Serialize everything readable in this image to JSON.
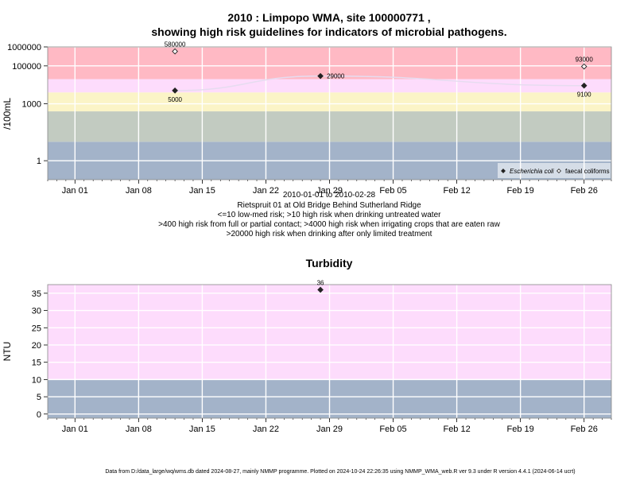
{
  "chart_data": [
    {
      "type": "scatter",
      "title_line1": "2010 : Limpopo WMA, site 100000771 ,",
      "title_line2": "showing high risk guidelines for indicators of microbial pathogens.",
      "ylabel": "/100mL",
      "yscale": "log",
      "ylim": [
        0.1,
        1000000
      ],
      "yticks": [
        "1000000",
        "100000",
        "1000",
        "1"
      ],
      "xlim": [
        "2009-12-29",
        "2010-03-01"
      ],
      "xticks": [
        "Jan 01",
        "Jan 08",
        "Jan 15",
        "Jan 22",
        "Jan 29",
        "Feb 05",
        "Feb 12",
        "Feb 19",
        "Feb 26"
      ],
      "bands": [
        {
          "from": 0.1,
          "to": 10,
          "color": "#a3b3c9"
        },
        {
          "from": 10,
          "to": 400,
          "color": "#c2cbc1"
        },
        {
          "from": 400,
          "to": 4000,
          "color": "#fbf4c7"
        },
        {
          "from": 4000,
          "to": 20000,
          "color": "#fddcfc"
        },
        {
          "from": 20000,
          "to": 1000000,
          "color": "#ffb9c4"
        }
      ],
      "series": [
        {
          "name": "Escherichia coli",
          "marker": "filled-diamond",
          "points": [
            {
              "x": "2010-01-12",
              "y": 5000,
              "label": "5000"
            },
            {
              "x": "2010-01-28",
              "y": 29000,
              "label": "29000"
            },
            {
              "x": "2010-02-26",
              "y": 9100,
              "label": "9100"
            }
          ]
        },
        {
          "name": "faecal coliforms",
          "marker": "open-diamond",
          "points": [
            {
              "x": "2010-01-12",
              "y": 580000,
              "label": "580000"
            },
            {
              "x": "2010-02-26",
              "y": 93000,
              "label": "93000"
            }
          ]
        }
      ],
      "legend": {
        "position": "bottom-right",
        "items": [
          "Escherichia coli",
          "faecal coliforms"
        ]
      },
      "subtitle_lines": [
        "2010-01-01 to 2010-02-28",
        "Rietspruit 01 at Old Bridge Behind Sutherland Ridge",
        "<=10 low-med risk; >10 high risk when drinking untreated water",
        ">400 high risk from full or partial contact; >4000 high risk when irrigating crops that are eaten raw",
        ">20000 high risk when drinking after only limited treatment"
      ]
    },
    {
      "type": "scatter",
      "title": "Turbidity",
      "ylabel": "NTU",
      "ylim": [
        -1.2,
        37.5
      ],
      "yticks": [
        "0",
        "5",
        "10",
        "15",
        "20",
        "25",
        "30",
        "35"
      ],
      "xlim": [
        "2009-12-29",
        "2010-03-01"
      ],
      "xticks": [
        "Jan 01",
        "Jan 08",
        "Jan 15",
        "Jan 22",
        "Jan 29",
        "Feb 05",
        "Feb 12",
        "Feb 19",
        "Feb 26"
      ],
      "bands": [
        {
          "from": -1.2,
          "to": 10,
          "color": "#a3b3c9"
        },
        {
          "from": 10,
          "to": 37.5,
          "color": "#fddcfc"
        }
      ],
      "series": [
        {
          "marker": "filled-diamond",
          "points": [
            {
              "x": "2010-01-28",
              "y": 36,
              "label": "36"
            }
          ]
        }
      ]
    }
  ],
  "footer": "Data from D:/data_large/wq/wms.db dated 2024-08-27, mainly NMMP programme. Plotted on 2024-10-24 22:26:35 using NMMP_WMA_web.R ver 9.3 under R version 4.4.1 (2024-06-14 ucrt)"
}
